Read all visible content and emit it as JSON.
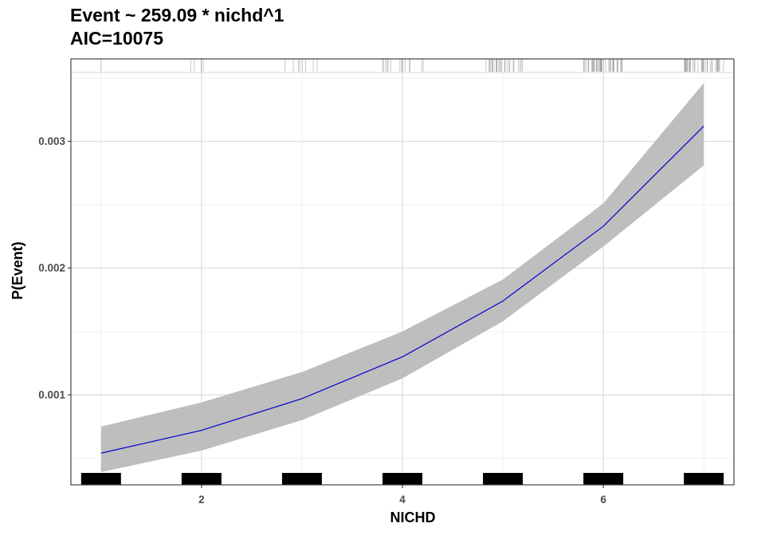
{
  "chart_data": {
    "type": "line",
    "title": "Event ~ 259.09 * nichd^1",
    "subtitle": "AIC=10075",
    "xlabel": "NICHD",
    "ylabel": "P(Event)",
    "xlim": [
      0.7,
      7.3
    ],
    "ylim": [
      0.00029,
      0.00365
    ],
    "x_ticks": [
      2,
      4,
      6
    ],
    "x_tick_labels": [
      "2",
      "4",
      "6"
    ],
    "y_ticks": [
      0.001,
      0.002,
      0.003
    ],
    "y_tick_labels": [
      "0.001",
      "0.002",
      "0.003"
    ],
    "grid": true,
    "series": [
      {
        "x": [
          1,
          2,
          3,
          4,
          5,
          6,
          7
        ],
        "values": [
          0.00054,
          0.00072,
          0.00097,
          0.0013,
          0.00174,
          0.00233,
          0.00312
        ],
        "lower": [
          0.00039,
          0.00056,
          0.0008,
          0.00113,
          0.00158,
          0.00217,
          0.00281
        ],
        "upper": [
          0.00075,
          0.00094,
          0.00118,
          0.0015,
          0.00191,
          0.00251,
          0.00346
        ],
        "color": "#0000cd",
        "band_color": "#bebebe"
      }
    ],
    "bottom_markers": {
      "x": [
        1,
        2,
        3,
        4,
        5,
        6,
        7
      ],
      "color": "#000000"
    },
    "rug": {
      "color": "#000000",
      "groups": [
        {
          "center": 1,
          "count": 1,
          "spread": 0.02
        },
        {
          "center": 2,
          "count": 4,
          "spread": 0.14
        },
        {
          "center": 3,
          "count": 8,
          "spread": 0.2
        },
        {
          "center": 4,
          "count": 14,
          "spread": 0.22
        },
        {
          "center": 5,
          "count": 26,
          "spread": 0.2
        },
        {
          "center": 6,
          "count": 40,
          "spread": 0.2
        },
        {
          "center": 7,
          "count": 34,
          "spread": 0.2
        }
      ]
    }
  }
}
